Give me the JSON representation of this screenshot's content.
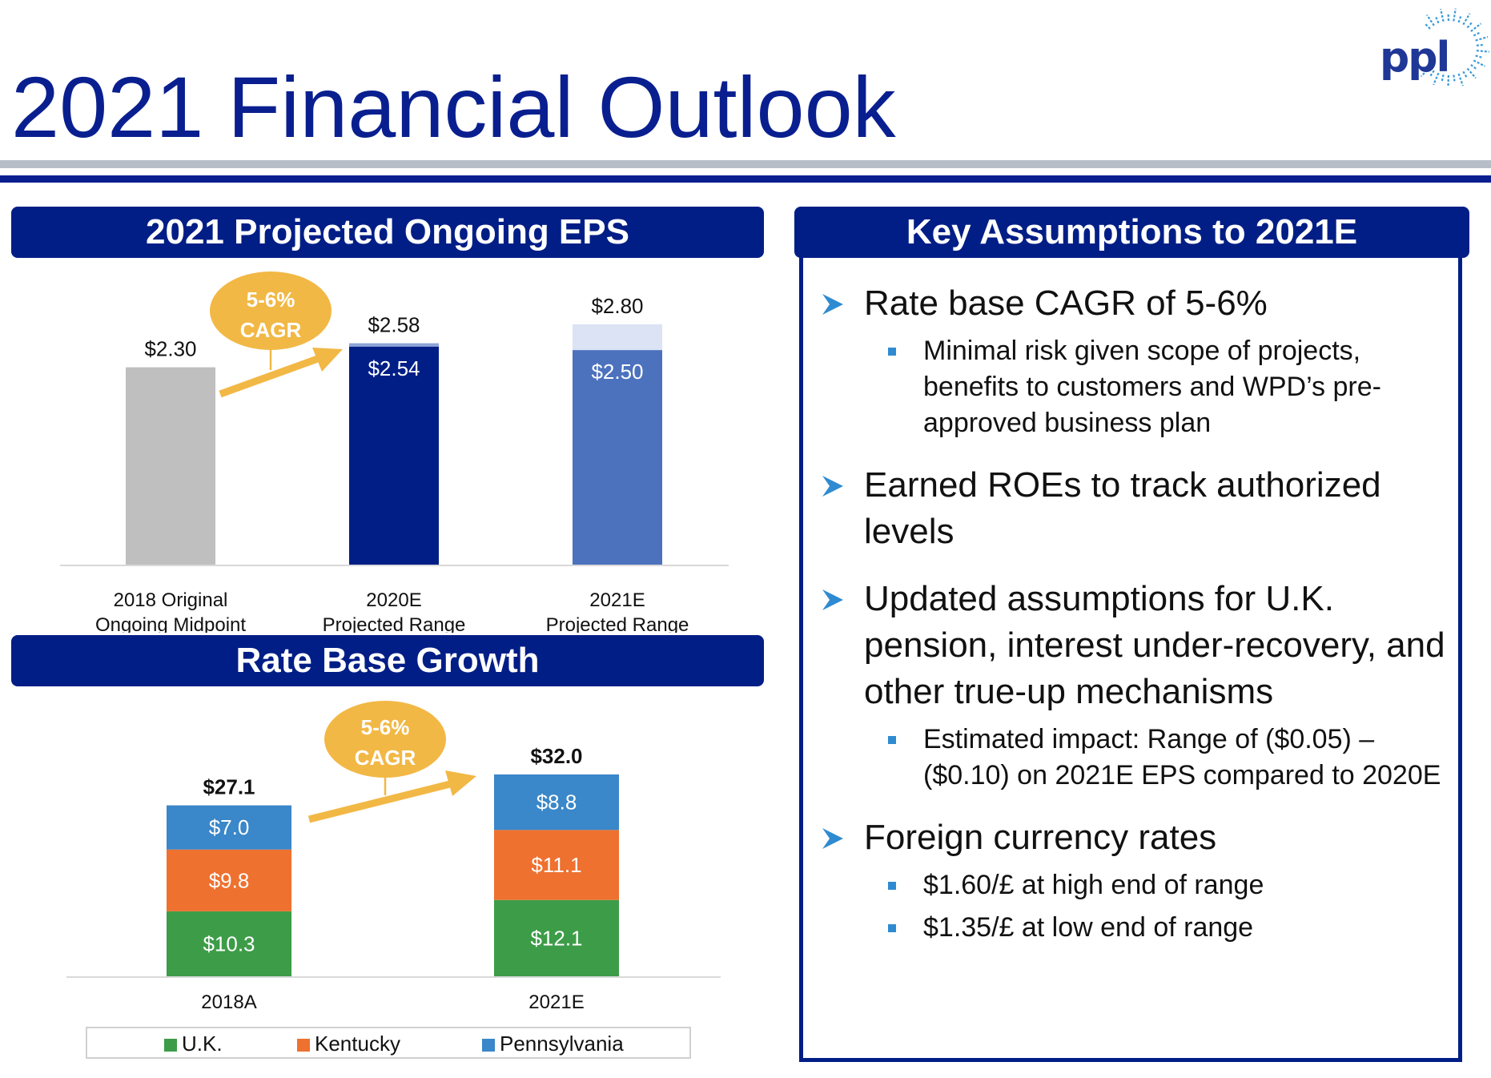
{
  "page": {
    "title": "2021 Financial Outlook",
    "logo_text": "ppl"
  },
  "colors": {
    "navy": "#001e86",
    "title_blue": "#0a1f8f",
    "arrow": "#f2b845",
    "uk": "#3d9c48",
    "kentucky": "#ee7130",
    "pennsylvania": "#3a87c9",
    "gray_bar": "#bfbfbf",
    "light_blue": "#dbe3f4",
    "mid_blue": "#4c72be"
  },
  "eps_panel": {
    "title": "2021 Projected Ongoing EPS",
    "cagr_badge": [
      "5-6%",
      "CAGR"
    ]
  },
  "rate_panel": {
    "title": "Rate Base Growth",
    "cagr_badge": [
      "5-6%",
      "CAGR"
    ]
  },
  "assumptions": {
    "title": "Key Assumptions to 2021E",
    "items": [
      {
        "text": "Rate base CAGR of 5-6%",
        "subs": [
          "Minimal risk given scope of projects, benefits to customers and WPD’s pre-approved business plan"
        ]
      },
      {
        "text": "Earned ROEs to track authorized levels",
        "subs": []
      },
      {
        "text": "Updated assumptions for U.K. pension, interest under-recovery, and other true-up mechanisms",
        "subs": [
          "Estimated impact: Range of ($0.05) – ($0.10) on 2021E EPS compared to 2020E"
        ]
      },
      {
        "text": "Foreign currency rates",
        "subs": [
          "$1.60/£ at high end of range",
          "$1.35/£ at low end of range"
        ]
      }
    ]
  },
  "chart_data": [
    {
      "type": "bar",
      "title": "2021 Projected Ongoing EPS",
      "categories": [
        [
          "2018 Original",
          "Ongoing Midpoint"
        ],
        [
          "2020E",
          "Projected Range"
        ],
        [
          "2021E",
          "Projected Range"
        ]
      ],
      "bars": [
        {
          "low": 2.3,
          "high": null,
          "low_label": "",
          "high_label": "$2.30"
        },
        {
          "low": 2.54,
          "high": 2.58,
          "low_label": "$2.54",
          "high_label": "$2.58"
        },
        {
          "low": 2.5,
          "high": 2.8,
          "low_label": "$2.50",
          "high_label": "$2.80"
        }
      ],
      "annotation": "5-6% CAGR"
    },
    {
      "type": "bar",
      "stacked": true,
      "title": "Rate Base Growth",
      "categories": [
        "2018A",
        "2021E"
      ],
      "series": [
        {
          "name": "U.K.",
          "values": [
            10.3,
            12.1
          ],
          "labels": [
            "$10.3",
            "$12.1"
          ]
        },
        {
          "name": "Kentucky",
          "values": [
            9.8,
            11.1
          ],
          "labels": [
            "$9.8",
            "$11.1"
          ]
        },
        {
          "name": "Pennsylvania",
          "values": [
            7.0,
            8.8
          ],
          "labels": [
            "$7.0",
            "$8.8"
          ]
        }
      ],
      "totals": [
        27.1,
        32.0
      ],
      "total_labels": [
        "$27.1",
        "$32.0"
      ],
      "legend": "bottom",
      "annotation": "5-6% CAGR"
    }
  ]
}
